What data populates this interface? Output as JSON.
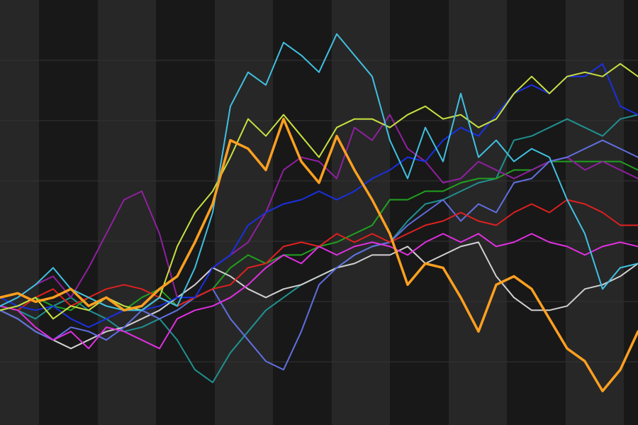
{
  "chart_data": {
    "type": "line",
    "ylim": [
      0,
      100
    ],
    "series": [
      {
        "color": "#209090",
        "values": [
          28,
          27,
          25,
          28,
          30,
          27,
          25,
          22,
          23,
          25,
          20,
          13,
          10,
          17,
          22,
          27,
          30,
          33,
          35,
          37,
          40,
          42,
          43,
          48,
          52,
          53,
          55,
          57,
          58,
          67,
          68,
          70,
          72,
          70,
          68,
          72,
          73
        ]
      },
      {
        "color": "#20a020",
        "values": [
          27,
          28,
          30,
          28,
          27,
          30,
          28,
          27,
          30,
          32,
          28,
          30,
          32,
          37,
          40,
          38,
          40,
          40,
          42,
          43,
          45,
          47,
          53,
          53,
          55,
          55,
          57,
          58,
          58,
          60,
          60,
          62,
          62,
          62,
          62,
          62,
          60
        ]
      },
      {
        "color": "#9020a0",
        "values": [
          28,
          30,
          33,
          35,
          30,
          37,
          45,
          53,
          55,
          45,
          30,
          33,
          37,
          40,
          43,
          50,
          60,
          63,
          62,
          58,
          70,
          67,
          73,
          65,
          62,
          57,
          58,
          62,
          60,
          58,
          60,
          62,
          63,
          60,
          62,
          60,
          58
        ]
      },
      {
        "color": "#d0d0d0",
        "values": [
          27,
          25,
          22,
          20,
          18,
          20,
          22,
          23,
          25,
          27,
          30,
          33,
          37,
          35,
          32,
          30,
          32,
          33,
          35,
          37,
          38,
          40,
          40,
          42,
          38,
          40,
          42,
          43,
          35,
          30,
          27,
          27,
          28,
          32,
          33,
          35,
          38
        ]
      },
      {
        "color": "#6070e0",
        "values": [
          27,
          25,
          22,
          20,
          23,
          22,
          20,
          23,
          27,
          25,
          27,
          30,
          32,
          25,
          20,
          15,
          13,
          22,
          33,
          37,
          40,
          42,
          43,
          47,
          50,
          53,
          48,
          52,
          50,
          57,
          58,
          62,
          63,
          65,
          67,
          65,
          63
        ]
      },
      {
        "color": "#e02020",
        "values": [
          28,
          27,
          30,
          32,
          28,
          30,
          32,
          33,
          32,
          30,
          28,
          30,
          32,
          33,
          37,
          38,
          42,
          43,
          42,
          45,
          43,
          45,
          43,
          45,
          47,
          48,
          50,
          48,
          47,
          50,
          52,
          50,
          53,
          52,
          50,
          47,
          47
        ]
      },
      {
        "color": "#e030e0",
        "values": [
          28,
          27,
          23,
          20,
          22,
          18,
          23,
          22,
          20,
          18,
          25,
          27,
          28,
          30,
          33,
          37,
          40,
          38,
          42,
          40,
          42,
          43,
          42,
          40,
          43,
          45,
          43,
          45,
          42,
          43,
          45,
          43,
          42,
          40,
          42,
          43,
          42
        ]
      },
      {
        "color": "#1a30e0",
        "values": [
          30,
          28,
          27,
          28,
          25,
          23,
          25,
          27,
          27,
          28,
          30,
          30,
          37,
          40,
          47,
          50,
          52,
          53,
          55,
          53,
          55,
          58,
          60,
          63,
          62,
          67,
          70,
          68,
          73,
          78,
          80,
          78,
          82,
          82,
          85,
          75,
          73
        ]
      },
      {
        "color": "#c8e040",
        "values": [
          27,
          28,
          30,
          25,
          28,
          27,
          30,
          28,
          27,
          30,
          42,
          50,
          55,
          63,
          72,
          68,
          73,
          68,
          63,
          70,
          72,
          72,
          70,
          73,
          75,
          72,
          73,
          70,
          72,
          78,
          82,
          78,
          82,
          83,
          82,
          85,
          82
        ]
      },
      {
        "color": "#40c0e0",
        "values": [
          28,
          30,
          33,
          37,
          32,
          30,
          28,
          27,
          27,
          30,
          28,
          37,
          50,
          75,
          83,
          80,
          90,
          87,
          83,
          92,
          87,
          82,
          67,
          58,
          70,
          62,
          78,
          63,
          67,
          62,
          65,
          63,
          53,
          45,
          32,
          37,
          38
        ]
      },
      {
        "color": "#ffa020",
        "values": [
          30,
          31,
          29,
          30,
          32,
          28,
          30,
          27,
          28,
          32,
          35,
          43,
          52,
          67,
          65,
          60,
          72,
          62,
          57,
          68,
          60,
          53,
          45,
          33,
          38,
          37,
          30,
          22,
          33,
          35,
          32,
          25,
          18,
          15,
          8,
          13,
          22
        ]
      }
    ]
  }
}
